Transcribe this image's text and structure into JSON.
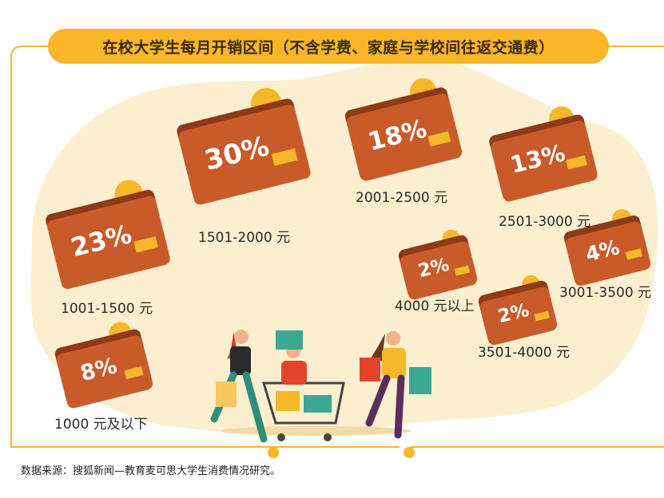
{
  "title": "在校大学生每月开销区间（不含学费、家庭与学校间往返交通费）",
  "source": "数据来源：搜狐新闻—教育麦可思大学生消费情况研究。",
  "colors": {
    "wallet": "#c95a2a",
    "wallet_dark": "#8f3a17",
    "coin": "#f4b82a",
    "accent": "#f8b628",
    "background_blob": "#fcefcf"
  },
  "chart_data": {
    "type": "pictorial",
    "title": "在校大学生每月开销区间（不含学费、家庭与学校间往返交通费）",
    "categories": [
      "1000 元及以下",
      "1001-1500 元",
      "1501-2000 元",
      "2001-2500 元",
      "2501-3000 元",
      "3001-3500 元",
      "3501-4000 元",
      "4000 元以上"
    ],
    "series": [
      {
        "values": [
          8,
          23,
          30,
          18,
          13,
          4,
          2,
          2
        ]
      }
    ],
    "value_labels": [
      "8%",
      "23%",
      "30%",
      "18%",
      "13%",
      "4%",
      "2%",
      "2%"
    ],
    "unit": "%"
  }
}
